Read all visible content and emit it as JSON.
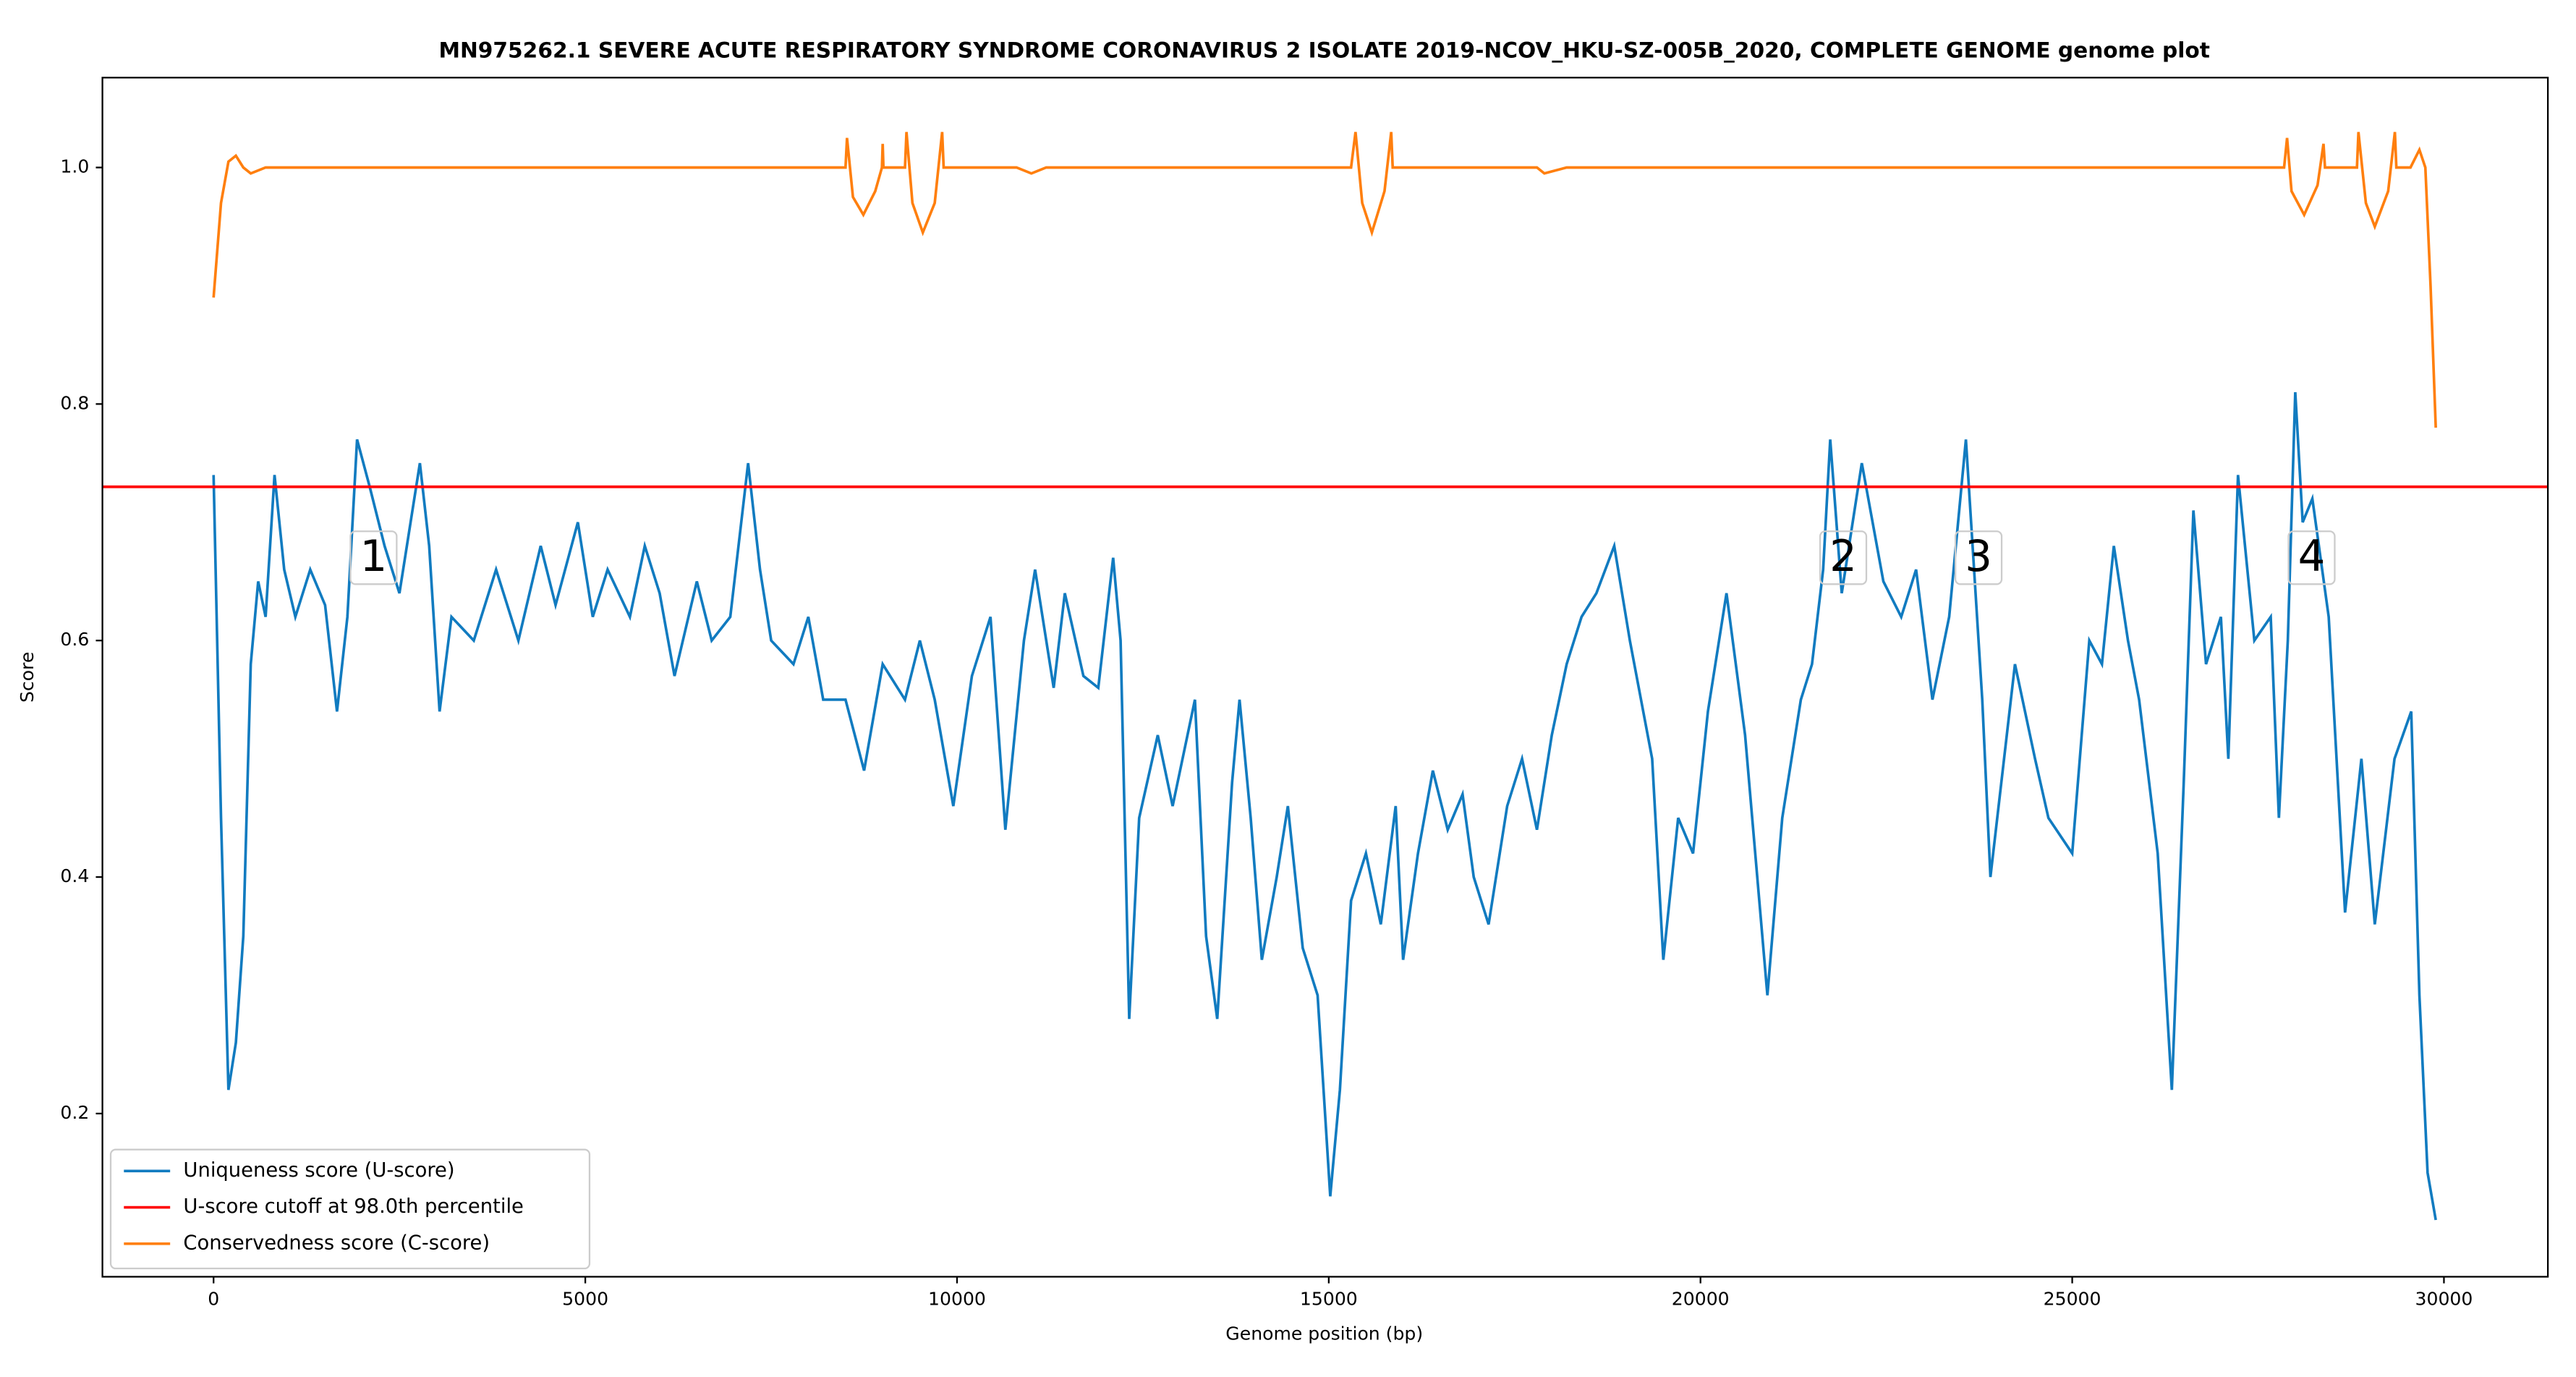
{
  "chart_data": {
    "type": "line",
    "title": "MN975262.1 SEVERE ACUTE RESPIRATORY SYNDROME CORONAVIRUS 2 ISOLATE 2019-NCOV_HKU-SZ-005B_2020, COMPLETE GENOME genome plot",
    "xlabel": "Genome position (bp)",
    "ylabel": "Score",
    "xlim": [
      -1495,
      31398
    ],
    "ylim": [
      0.062,
      1.076
    ],
    "xticks": [
      0,
      5000,
      10000,
      15000,
      20000,
      25000,
      30000
    ],
    "yticks": [
      0.2,
      0.4,
      0.6,
      0.8,
      {
        "value": 1,
        "label": "1.0"
      }
    ],
    "legend": "lower left",
    "series": [
      {
        "name": "Uniqueness score (U-score)",
        "color": "#117bc0",
        "x": [
          0,
          100,
          200,
          300,
          400,
          500,
          600,
          700,
          820,
          950,
          1100,
          1300,
          1500,
          1660,
          1800,
          1930,
          2100,
          2300,
          2500,
          2650,
          2775,
          2900,
          3040,
          3200,
          3500,
          3800,
          4100,
          4400,
          4600,
          4900,
          5100,
          5300,
          5600,
          5800,
          6000,
          6200,
          6500,
          6700,
          6950,
          7190,
          7350,
          7500,
          7800,
          8000,
          8200,
          8500,
          8750,
          9000,
          9300,
          9500,
          9700,
          9950,
          10200,
          10450,
          10650,
          10900,
          11050,
          11300,
          11450,
          11700,
          11900,
          12100,
          12200,
          12316,
          12450,
          12700,
          12900,
          13200,
          13350,
          13500,
          13700,
          13800,
          13950,
          14100,
          14300,
          14450,
          14650,
          14850,
          15020,
          15150,
          15300,
          15500,
          15700,
          15900,
          16000,
          16200,
          16400,
          16600,
          16800,
          16950,
          17150,
          17400,
          17600,
          17800,
          18000,
          18200,
          18400,
          18600,
          18840,
          19050,
          19350,
          19500,
          19700,
          19900,
          20100,
          20350,
          20600,
          20900,
          21100,
          21350,
          21500,
          21650,
          21745,
          21900,
          22170,
          22460,
          22700,
          22900,
          23120,
          23345,
          23570,
          23790,
          23900,
          24230,
          24500,
          24680,
          25000,
          25230,
          25400,
          25560,
          25750,
          25900,
          26150,
          26340,
          26500,
          26630,
          26800,
          27000,
          27100,
          27230,
          27450,
          27670,
          27780,
          27900,
          28000,
          28100,
          28230,
          28450,
          28670,
          28890,
          29070,
          29335,
          29560,
          29670,
          29780,
          29890
        ],
        "values": [
          0.74,
          0.45,
          0.22,
          0.26,
          0.35,
          0.58,
          0.65,
          0.62,
          0.74,
          0.66,
          0.62,
          0.66,
          0.63,
          0.54,
          0.62,
          0.77,
          0.73,
          0.68,
          0.64,
          0.7,
          0.75,
          0.68,
          0.54,
          0.62,
          0.6,
          0.66,
          0.6,
          0.68,
          0.63,
          0.7,
          0.62,
          0.66,
          0.62,
          0.68,
          0.64,
          0.57,
          0.65,
          0.6,
          0.62,
          0.75,
          0.66,
          0.6,
          0.58,
          0.62,
          0.55,
          0.55,
          0.49,
          0.58,
          0.55,
          0.6,
          0.55,
          0.46,
          0.57,
          0.62,
          0.44,
          0.6,
          0.66,
          0.56,
          0.64,
          0.57,
          0.56,
          0.67,
          0.6,
          0.28,
          0.45,
          0.52,
          0.46,
          0.55,
          0.35,
          0.28,
          0.48,
          0.55,
          0.45,
          0.33,
          0.4,
          0.46,
          0.34,
          0.3,
          0.13,
          0.22,
          0.38,
          0.42,
          0.36,
          0.46,
          0.33,
          0.42,
          0.49,
          0.44,
          0.47,
          0.4,
          0.36,
          0.46,
          0.5,
          0.44,
          0.52,
          0.58,
          0.62,
          0.64,
          0.68,
          0.6,
          0.5,
          0.33,
          0.45,
          0.42,
          0.54,
          0.64,
          0.52,
          0.3,
          0.45,
          0.55,
          0.58,
          0.66,
          0.77,
          0.64,
          0.75,
          0.65,
          0.62,
          0.66,
          0.55,
          0.62,
          0.77,
          0.55,
          0.4,
          0.58,
          0.5,
          0.45,
          0.42,
          0.6,
          0.58,
          0.68,
          0.6,
          0.55,
          0.42,
          0.22,
          0.48,
          0.71,
          0.58,
          0.62,
          0.5,
          0.74,
          0.6,
          0.62,
          0.45,
          0.6,
          0.81,
          0.7,
          0.72,
          0.62,
          0.37,
          0.5,
          0.36,
          0.5,
          0.54,
          0.3,
          0.15,
          0.11
        ]
      },
      {
        "name": "Conservedness score (C-score)",
        "color": "#ff7f0e",
        "x": [
          0,
          100,
          200,
          300,
          400,
          500,
          700,
          3000,
          8500,
          8520,
          8600,
          8740,
          8900,
          8990,
          9000,
          9010,
          9300,
          9320,
          9400,
          9540,
          9700,
          9800,
          9820,
          10800,
          11000,
          11200,
          15300,
          15360,
          15450,
          15580,
          15750,
          15840,
          15860,
          17800,
          17900,
          18200,
          27850,
          27890,
          27950,
          28120,
          28300,
          28380,
          28400,
          28830,
          28850,
          28950,
          29070,
          29250,
          29340,
          29360,
          29550,
          29670,
          29750,
          29820,
          29890
        ],
        "values": [
          0.89,
          0.97,
          1.005,
          1.01,
          1.0,
          0.995,
          1.0,
          1.0,
          1.0,
          1.025,
          0.975,
          0.96,
          0.98,
          1.0,
          1.02,
          1.0,
          1.0,
          1.03,
          0.97,
          0.945,
          0.97,
          1.03,
          1.0,
          1.0,
          0.995,
          1.0,
          1.0,
          1.03,
          0.97,
          0.945,
          0.98,
          1.03,
          1.0,
          1.0,
          0.995,
          1.0,
          1.0,
          1.025,
          0.98,
          0.96,
          0.985,
          1.02,
          1.0,
          1.0,
          1.03,
          0.97,
          0.95,
          0.98,
          1.03,
          1.0,
          1.0,
          1.015,
          1.0,
          0.9,
          0.78
        ]
      }
    ],
    "cutoff": {
      "name": "U-score cutoff at 98.0th percentile",
      "color": "#ff0000",
      "value": 0.73
    },
    "annotations": [
      {
        "text": "1",
        "x": 2152,
        "y": 0.67
      },
      {
        "text": "2",
        "x": 21920,
        "y": 0.67
      },
      {
        "text": "3",
        "x": 23740,
        "y": 0.67
      },
      {
        "text": "4",
        "x": 28220,
        "y": 0.67
      }
    ]
  }
}
